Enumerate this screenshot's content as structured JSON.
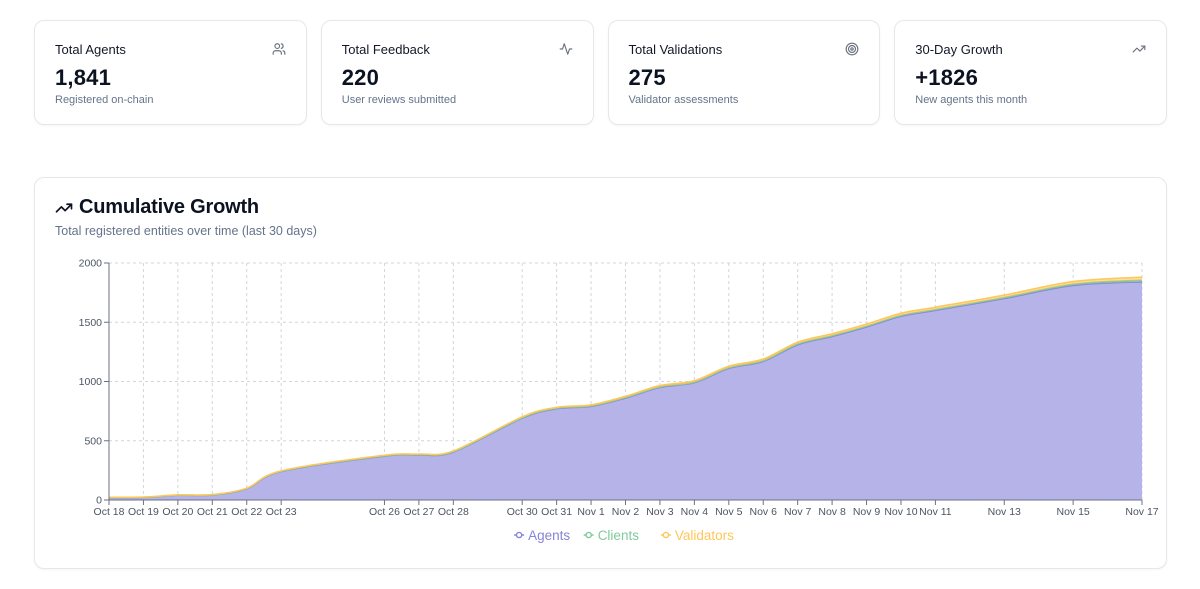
{
  "stats": [
    {
      "title": "Total Agents",
      "value": "1,841",
      "subtitle": "Registered on-chain",
      "icon": "users-icon"
    },
    {
      "title": "Total Feedback",
      "value": "220",
      "subtitle": "User reviews submitted",
      "icon": "activity-icon"
    },
    {
      "title": "Total Validations",
      "value": "275",
      "subtitle": "Validator assessments",
      "icon": "target-icon"
    },
    {
      "title": "30-Day Growth",
      "value": "+1826",
      "subtitle": "New agents this month",
      "icon": "trending-up-icon"
    }
  ],
  "chart_card": {
    "title": "Cumulative Growth",
    "subtitle": "Total registered entities over time (last 30 days)",
    "icon": "trending-up-icon"
  },
  "colors": {
    "agents": "#8884d8",
    "agents_fill": "#b6b3e8",
    "clients": "#82ca9d",
    "validators": "#ffc658",
    "grid": "#d1d5db",
    "axis": "#6b7280"
  },
  "chart_data": {
    "type": "area",
    "stacked": true,
    "title": "Cumulative Growth",
    "subtitle": "Total registered entities over time (last 30 days)",
    "xlabel": "",
    "ylabel": "",
    "ylim": [
      0,
      2000
    ],
    "yticks": [
      0,
      500,
      1000,
      1500,
      2000
    ],
    "grid": true,
    "legend": "bottom-center",
    "x": [
      "Oct 18",
      "Oct 19",
      "Oct 20",
      "Oct 21",
      "Oct 22",
      "Oct 23",
      "Oct 26",
      "Oct 27",
      "Oct 28",
      "Oct 30",
      "Oct 31",
      "Nov 1",
      "Nov 2",
      "Nov 3",
      "Nov 4",
      "Nov 5",
      "Nov 6",
      "Nov 7",
      "Nov 8",
      "Nov 9",
      "Nov 10",
      "Nov 11",
      "Nov 13",
      "Nov 15",
      "Nov 17"
    ],
    "x_dates": [
      "2025-10-18",
      "2025-10-19",
      "2025-10-20",
      "2025-10-21",
      "2025-10-22",
      "2025-10-23",
      "2025-10-26",
      "2025-10-27",
      "2025-10-28",
      "2025-10-30",
      "2025-10-31",
      "2025-11-01",
      "2025-11-02",
      "2025-11-03",
      "2025-11-04",
      "2025-11-05",
      "2025-11-06",
      "2025-11-07",
      "2025-11-08",
      "2025-11-09",
      "2025-11-10",
      "2025-11-11",
      "2025-11-13",
      "2025-11-15",
      "2025-11-17"
    ],
    "series": [
      {
        "name": "Agents",
        "values": [
          20,
          22,
          40,
          42,
          95,
          240,
          370,
          380,
          405,
          690,
          770,
          790,
          860,
          950,
          990,
          1110,
          1170,
          1310,
          1380,
          1460,
          1550,
          1600,
          1700,
          1810,
          1841
        ]
      },
      {
        "name": "Clients",
        "values": [
          1,
          1,
          1,
          1,
          2,
          2,
          3,
          3,
          3,
          4,
          4,
          4,
          5,
          5,
          5,
          6,
          6,
          7,
          7,
          7,
          8,
          8,
          9,
          12,
          15
        ]
      },
      {
        "name": "Validators",
        "values": [
          2,
          2,
          2,
          3,
          3,
          4,
          5,
          5,
          6,
          8,
          8,
          9,
          10,
          11,
          12,
          13,
          14,
          15,
          16,
          17,
          18,
          19,
          20,
          22,
          25
        ]
      }
    ]
  }
}
